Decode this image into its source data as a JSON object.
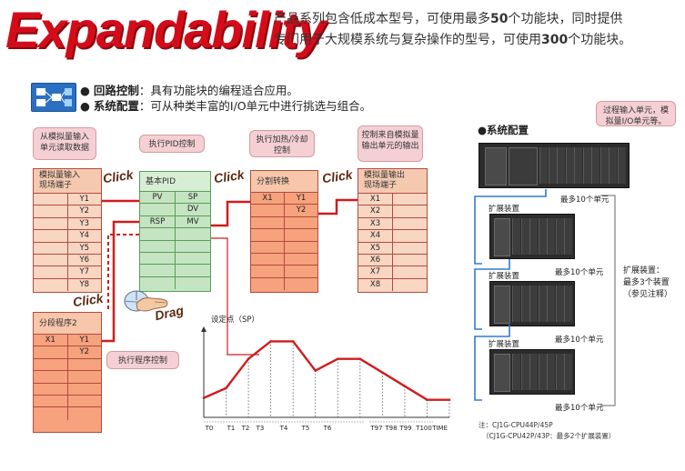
{
  "hero": {
    "title": "Expandability",
    "desc_line1_pre": "产品系列包含低成本型号，可使用最多",
    "desc_line1_num": "50",
    "desc_line1_post": "个功能块，同时提供",
    "desc_line2_pre": "专门用于大规模系统与复杂操作的型号，可使用",
    "desc_line2_num": "300",
    "desc_line2_post": "个功能块。"
  },
  "info": {
    "loop_label": "回路控制",
    "loop_text": "：具有功能块的编程适合应用。",
    "system_label": "系统配置",
    "system_text": "：可从种类丰富的I/O单元中进行挑选与组合。"
  },
  "bubbles": {
    "read_analog": "从模拟量输入单元读取数据",
    "pid_control": "执行PID控制",
    "add_sub": "执行加热/冷却控制",
    "control_output": "控制来自模拟量输出单元的输出",
    "program_control": "执行程序控制",
    "process_input": "过程输入单元，模拟量I/O单元等。"
  },
  "blocks": {
    "analog_in": {
      "title": "模拟量输入\n现场端子",
      "rows": [
        [
          "",
          "Y1"
        ],
        [
          "",
          "Y2"
        ],
        [
          "",
          "Y3"
        ],
        [
          "",
          "Y4"
        ],
        [
          "",
          "Y5"
        ],
        [
          "",
          "Y6"
        ],
        [
          "",
          "Y7"
        ],
        [
          "",
          "Y8"
        ]
      ]
    },
    "pid": {
      "title": "基本PID",
      "rows": [
        [
          "PV",
          "SP"
        ],
        [
          "",
          "DV"
        ],
        [
          "RSP",
          "MV"
        ],
        [
          "",
          ""
        ],
        [
          "",
          ""
        ],
        [
          "",
          ""
        ],
        [
          "",
          ""
        ],
        [
          "",
          ""
        ]
      ]
    },
    "split": {
      "title": "分割转换",
      "rows": [
        [
          "X1",
          "Y1"
        ],
        [
          "",
          "Y2"
        ],
        [
          "",
          ""
        ],
        [
          "",
          ""
        ],
        [
          "",
          ""
        ],
        [
          "",
          ""
        ],
        [
          "",
          ""
        ],
        [
          "",
          ""
        ]
      ]
    },
    "analog_out": {
      "title": "模拟量输出\n现场端子",
      "rows": [
        [
          "X1",
          ""
        ],
        [
          "X2",
          ""
        ],
        [
          "X3",
          ""
        ],
        [
          "X4",
          ""
        ],
        [
          "X5",
          ""
        ],
        [
          "X6",
          ""
        ],
        [
          "X7",
          ""
        ],
        [
          "X8",
          ""
        ]
      ]
    },
    "segment": {
      "title": "分段程序2",
      "rows": [
        [
          "X1",
          "Y1"
        ],
        [
          "",
          "Y2"
        ],
        [
          "",
          ""
        ],
        [
          "",
          ""
        ],
        [
          "",
          ""
        ],
        [
          "",
          ""
        ],
        [
          "",
          ""
        ]
      ]
    }
  },
  "action_labels": {
    "click1": "Click",
    "click2": "Click",
    "click3": "Click",
    "click4": "Click",
    "drag": "Drag"
  },
  "chart_data": {
    "type": "line",
    "ylabel": "设定点（SP）",
    "xlabel": "TIME",
    "x_ticks": [
      "T0",
      "T1",
      "T2",
      "T3",
      "T4",
      "T5",
      "T6",
      "T97",
      "T98",
      "T99",
      "T100"
    ],
    "x": [
      0,
      1,
      2,
      3,
      4,
      5,
      6,
      7,
      8,
      9,
      10,
      11
    ],
    "values": [
      1.0,
      1.5,
      3.0,
      3.9,
      3.9,
      2.4,
      3.0,
      3.0,
      2.3,
      1.6,
      0.9,
      0.9
    ],
    "grid": false
  },
  "system": {
    "heading": "●系统配置",
    "cpu_note": "最多10个单元",
    "expansions": [
      {
        "label": "扩展装置",
        "note": "最多10个单元"
      },
      {
        "label": "扩展装置",
        "note": "最多10个单元"
      },
      {
        "label": "扩展装置",
        "note": "最多10个单元"
      }
    ],
    "bracket_text": "扩展装置：\n最多3个装置\n（参见注释）",
    "footnote1": "注：CJ1G-CPU44P/45P",
    "footnote2": "（CJ1G-CPU42P/43P：最多2个扩展装置）"
  },
  "colors": {
    "brand_red": "#d40c1a",
    "wire_red": "#d01c1c",
    "block_orange": "#f5a27d",
    "block_peach": "#f9d6c2",
    "block_green": "#c5e4c2"
  },
  "icons": [
    "blocks-icon",
    "mouse-icon",
    "hand-icon"
  ]
}
